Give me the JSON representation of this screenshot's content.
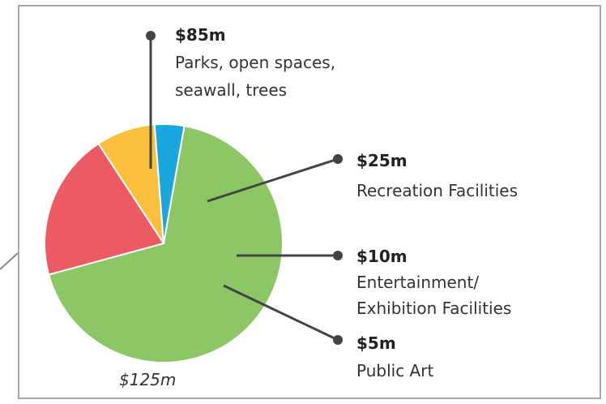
{
  "chart_data": {
    "type": "pie",
    "title": "",
    "total_label": "$125m",
    "slices": [
      {
        "amount_label": "$85m",
        "value": 85,
        "label_lines": [
          "Parks, open spaces,",
          "seawall, trees"
        ],
        "color": "#8cc665"
      },
      {
        "amount_label": "$25m",
        "value": 25,
        "label_lines": [
          "Recreation Facilities"
        ],
        "color": "#ec5a64"
      },
      {
        "amount_label": "$10m",
        "value": 10,
        "label_lines": [
          "Entertainment/",
          "Exhibition Facilities"
        ],
        "color": "#fbbf3b"
      },
      {
        "amount_label": "$5m",
        "value": 5,
        "label_lines": [
          "Public Art"
        ],
        "color": "#1aa7e0"
      }
    ]
  },
  "colors": {
    "panel_border": "#a9a9a9",
    "leader_line": "#444444",
    "text": "#333333"
  }
}
